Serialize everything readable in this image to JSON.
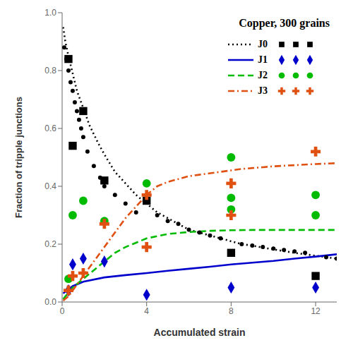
{
  "chart_data": {
    "type": "line",
    "title": "Copper, 300 grains",
    "x_label": "Accumulated strain",
    "y_label": "Fraction of tripple junctions",
    "xlim": [
      0,
      13
    ],
    "ylim": [
      0,
      1
    ],
    "xticks": [
      0,
      4,
      8,
      12
    ],
    "yticks": [
      {
        "value": 0,
        "label": "0.0"
      },
      0.2,
      0.4,
      0.6,
      0.8,
      {
        "value": 1.0,
        "label": "1.0"
      }
    ],
    "grid": false,
    "legend": "upper right",
    "series": [
      {
        "name": "J0",
        "type": "line",
        "line_style": "dotted",
        "color": "#000000",
        "x": [
          0.05,
          0.15,
          0.3,
          0.5,
          0.7,
          1.0,
          1.3,
          1.7,
          2.0,
          2.5,
          3.0,
          3.5,
          4.0,
          4.5,
          5.0,
          5.5,
          6.0,
          6.5,
          7.0,
          7.5,
          8.0,
          8.5,
          9.0,
          9.5,
          10.0,
          10.5,
          11.0,
          11.5,
          12.0,
          12.5,
          13.0
        ],
        "values": [
          0.95,
          0.9,
          0.85,
          0.79,
          0.73,
          0.67,
          0.61,
          0.55,
          0.51,
          0.45,
          0.41,
          0.37,
          0.34,
          0.31,
          0.29,
          0.27,
          0.25,
          0.24,
          0.23,
          0.22,
          0.21,
          0.2,
          0.195,
          0.188,
          0.182,
          0.176,
          0.17,
          0.165,
          0.16,
          0.155,
          0.15
        ]
      },
      {
        "name": "J1",
        "type": "line",
        "line_style": "solid",
        "color": "#0000cc",
        "x": [
          0.05,
          0.5,
          1.0,
          2.0,
          3.0,
          4.0,
          5.0,
          6.0,
          7.0,
          8.0,
          9.0,
          10.0,
          11.0,
          12.0,
          13.0
        ],
        "values": [
          0.03,
          0.055,
          0.07,
          0.085,
          0.093,
          0.1,
          0.108,
          0.115,
          0.122,
          0.13,
          0.136,
          0.142,
          0.15,
          0.157,
          0.165
        ]
      },
      {
        "name": "J2",
        "type": "line",
        "line_style": "dashed",
        "color": "#00bb00",
        "x": [
          0.05,
          0.5,
          1.0,
          1.5,
          2.0,
          2.5,
          3.0,
          3.5,
          4.0,
          5.0,
          6.0,
          7.0,
          8.0,
          9.0,
          10.0,
          11.0,
          12.0,
          13.0
        ],
        "values": [
          0.01,
          0.05,
          0.08,
          0.11,
          0.14,
          0.17,
          0.19,
          0.205,
          0.22,
          0.235,
          0.242,
          0.246,
          0.248,
          0.249,
          0.249,
          0.249,
          0.249,
          0.249
        ]
      },
      {
        "name": "J3",
        "type": "line",
        "line_style": "dashdot",
        "color": "#e05010",
        "x": [
          0.05,
          0.3,
          0.6,
          1.0,
          1.5,
          2.0,
          2.5,
          3.0,
          3.5,
          4.0,
          4.5,
          5.0,
          5.5,
          6.0,
          6.5,
          7.0,
          7.5,
          8.0,
          8.5,
          9.0,
          9.5,
          10.0,
          11.0,
          12.0,
          13.0
        ],
        "values": [
          0.005,
          0.02,
          0.05,
          0.09,
          0.14,
          0.19,
          0.24,
          0.29,
          0.33,
          0.37,
          0.4,
          0.415,
          0.425,
          0.435,
          0.44,
          0.445,
          0.45,
          0.455,
          0.46,
          0.463,
          0.466,
          0.469,
          0.473,
          0.477,
          0.48
        ]
      },
      {
        "type": "scatter",
        "marker": "dot",
        "color": "#000000",
        "x": [
          0.1,
          0.2,
          0.3,
          0.4,
          0.5,
          0.6,
          0.7,
          0.8,
          0.9,
          1.0,
          1.2,
          1.5,
          1.8,
          2.0,
          2.5,
          3.0,
          3.5,
          4.5,
          5.0,
          5.5,
          6.0,
          6.5,
          7.0,
          7.5,
          8.5,
          9.0,
          9.5,
          10.0,
          10.5,
          11.0,
          11.5,
          12.5,
          13.0
        ],
        "values": [
          0.88,
          0.84,
          0.8,
          0.76,
          0.73,
          0.69,
          0.66,
          0.63,
          0.6,
          0.57,
          0.52,
          0.47,
          0.43,
          0.4,
          0.37,
          0.34,
          0.31,
          0.3,
          0.28,
          0.27,
          0.25,
          0.24,
          0.23,
          0.22,
          0.2,
          0.195,
          0.19,
          0.185,
          0.18,
          0.175,
          0.17,
          0.155,
          0.15
        ]
      },
      {
        "name": "J0",
        "type": "scatter",
        "marker": "square",
        "color": "#000000",
        "x": [
          0.3,
          0.5,
          1.0,
          2.0,
          4.0,
          8.0,
          12.0
        ],
        "values": [
          0.84,
          0.54,
          0.66,
          0.42,
          0.35,
          0.17,
          0.09
        ]
      },
      {
        "name": "J1",
        "type": "scatter",
        "marker": "diamond",
        "color": "#0000cc",
        "x": [
          0.3,
          0.5,
          1.0,
          2.0,
          4.0,
          8.0,
          12.0
        ],
        "values": [
          0.04,
          0.13,
          0.15,
          0.14,
          0.025,
          0.05,
          0.05
        ]
      },
      {
        "name": "J2",
        "type": "scatter",
        "marker": "circle",
        "color": "#00bb00",
        "x": [
          0.3,
          0.5,
          1.0,
          2.0,
          4.0,
          8.0,
          8.0,
          8.0,
          12.0,
          12.0
        ],
        "values": [
          0.08,
          0.3,
          0.35,
          0.28,
          0.41,
          0.32,
          0.36,
          0.5,
          0.3,
          0.37
        ]
      },
      {
        "name": "J3",
        "type": "scatter",
        "marker": "plus",
        "color": "#e05010",
        "x": [
          0.3,
          0.5,
          1.0,
          2.0,
          4.0,
          4.0,
          8.0,
          8.0,
          12.0
        ],
        "values": [
          0.04,
          0.09,
          0.1,
          0.27,
          0.19,
          0.37,
          0.3,
          0.41,
          0.52
        ]
      }
    ]
  }
}
